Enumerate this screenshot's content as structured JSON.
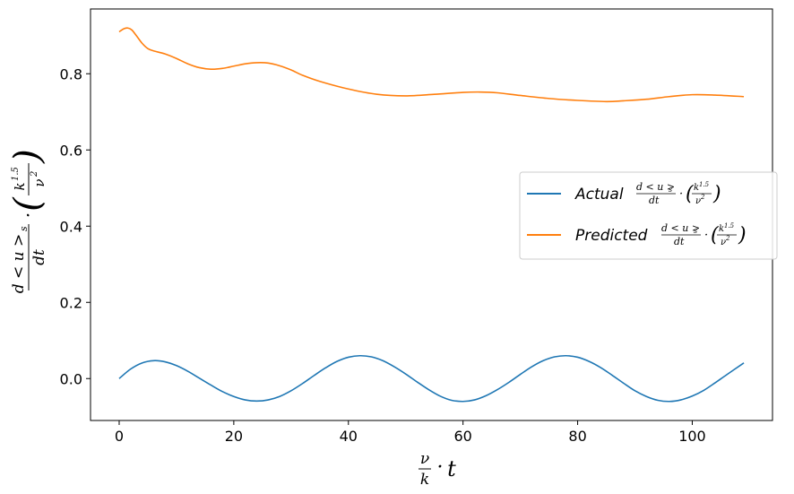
{
  "chart_data": {
    "type": "line",
    "xlim": [
      -5,
      114
    ],
    "ylim": [
      -0.11,
      0.97
    ],
    "x_ticks": [
      0,
      20,
      40,
      60,
      80,
      100
    ],
    "y_ticks": [
      0.0,
      0.2,
      0.4,
      0.6,
      0.8
    ],
    "x_tick_labels": [
      "0",
      "20",
      "40",
      "60",
      "80",
      "100"
    ],
    "y_tick_labels": [
      "0.0",
      "0.2",
      "0.4",
      "0.6",
      "0.8"
    ],
    "grid": false,
    "legend_position": "center-right",
    "xlabel": {
      "frac_num": "ν",
      "frac_den": "k",
      "dot": "·",
      "var": "t"
    },
    "ylabel": {
      "frac_num": "d < u >",
      "frac_num_sub": "s",
      "frac_den": "dt",
      "dot": "·",
      "paren_num": "k",
      "paren_num_sup": "1.5",
      "paren_den": "ν",
      "paren_den_sup": "2"
    },
    "series": [
      {
        "name": "Actual",
        "name_formula": "d < u >s / dt · (k1.5 / ν2)",
        "color": "#1f77b4",
        "x": [
          0,
          2,
          4,
          6,
          8,
          10,
          12,
          14,
          16,
          18,
          20,
          22,
          24,
          26,
          28,
          30,
          32,
          34,
          36,
          38,
          40,
          42,
          44,
          46,
          48,
          50,
          52,
          54,
          56,
          58,
          60,
          62,
          64,
          66,
          68,
          70,
          72,
          74,
          76,
          78,
          80,
          82,
          84,
          86,
          88,
          90,
          92,
          94,
          96,
          98,
          100,
          102,
          104,
          106,
          109
        ],
        "y": [
          0.0,
          0.025,
          0.041,
          0.047,
          0.044,
          0.034,
          0.019,
          0.001,
          -0.017,
          -0.034,
          -0.047,
          -0.056,
          -0.059,
          -0.056,
          -0.047,
          -0.032,
          -0.013,
          0.008,
          0.028,
          0.045,
          0.056,
          0.06,
          0.057,
          0.047,
          0.031,
          0.012,
          -0.009,
          -0.029,
          -0.046,
          -0.057,
          -0.06,
          -0.056,
          -0.045,
          -0.029,
          -0.01,
          0.011,
          0.031,
          0.047,
          0.057,
          0.06,
          0.056,
          0.045,
          0.029,
          0.009,
          -0.012,
          -0.032,
          -0.047,
          -0.057,
          -0.06,
          -0.056,
          -0.046,
          -0.031,
          -0.011,
          0.01,
          0.041
        ]
      },
      {
        "name": "Predicted",
        "name_formula": "d < u >s / dt · (k1.5 / ν2)",
        "color": "#ff7f0e",
        "x": [
          0,
          0.8,
          1.5,
          2.2,
          3,
          4,
          5,
          6,
          8,
          10,
          12,
          14,
          16,
          18,
          20,
          22,
          24,
          26,
          28,
          30,
          32,
          35,
          40,
          45,
          50,
          55,
          60,
          63,
          66,
          70,
          75,
          80,
          85,
          88,
          92,
          96,
          100,
          104,
          109
        ],
        "y": [
          0.91,
          0.918,
          0.92,
          0.915,
          0.9,
          0.88,
          0.866,
          0.86,
          0.852,
          0.84,
          0.826,
          0.816,
          0.812,
          0.814,
          0.82,
          0.826,
          0.829,
          0.828,
          0.821,
          0.81,
          0.796,
          0.78,
          0.76,
          0.746,
          0.742,
          0.746,
          0.751,
          0.752,
          0.75,
          0.743,
          0.735,
          0.73,
          0.727,
          0.729,
          0.733,
          0.74,
          0.745,
          0.744,
          0.74
        ]
      }
    ]
  }
}
